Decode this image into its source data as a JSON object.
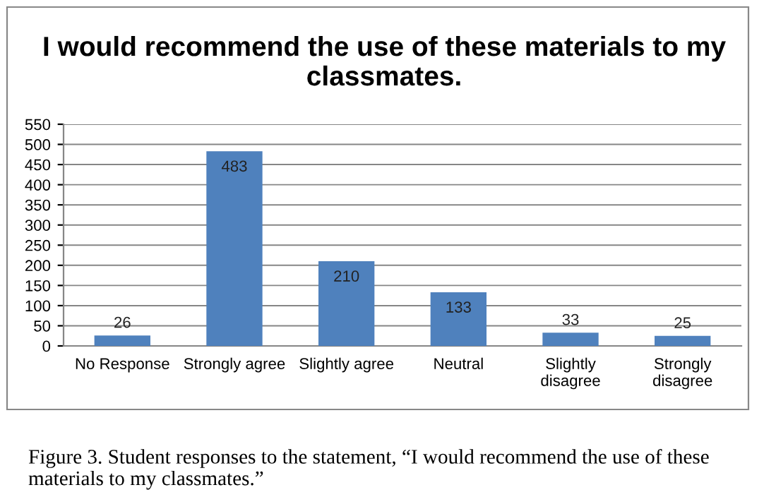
{
  "chart_data": {
    "type": "bar",
    "title": "I would recommend the use of these materials to my classmates.",
    "categories": [
      "No Response",
      "Strongly agree",
      "Slightly agree",
      "Neutral",
      "Slightly disagree",
      "Strongly disagree"
    ],
    "values": [
      26,
      483,
      210,
      133,
      33,
      25
    ],
    "color": "#4f81bd",
    "ylim": [
      0,
      550
    ],
    "yticks": [
      0,
      50,
      100,
      150,
      200,
      250,
      300,
      350,
      400,
      450,
      500,
      550
    ],
    "grid": "y",
    "data_labels": true,
    "annotations": [
      "Figure 3. Student responses to the statement, “I would recommend the use of these materials to my classmates.”"
    ]
  }
}
